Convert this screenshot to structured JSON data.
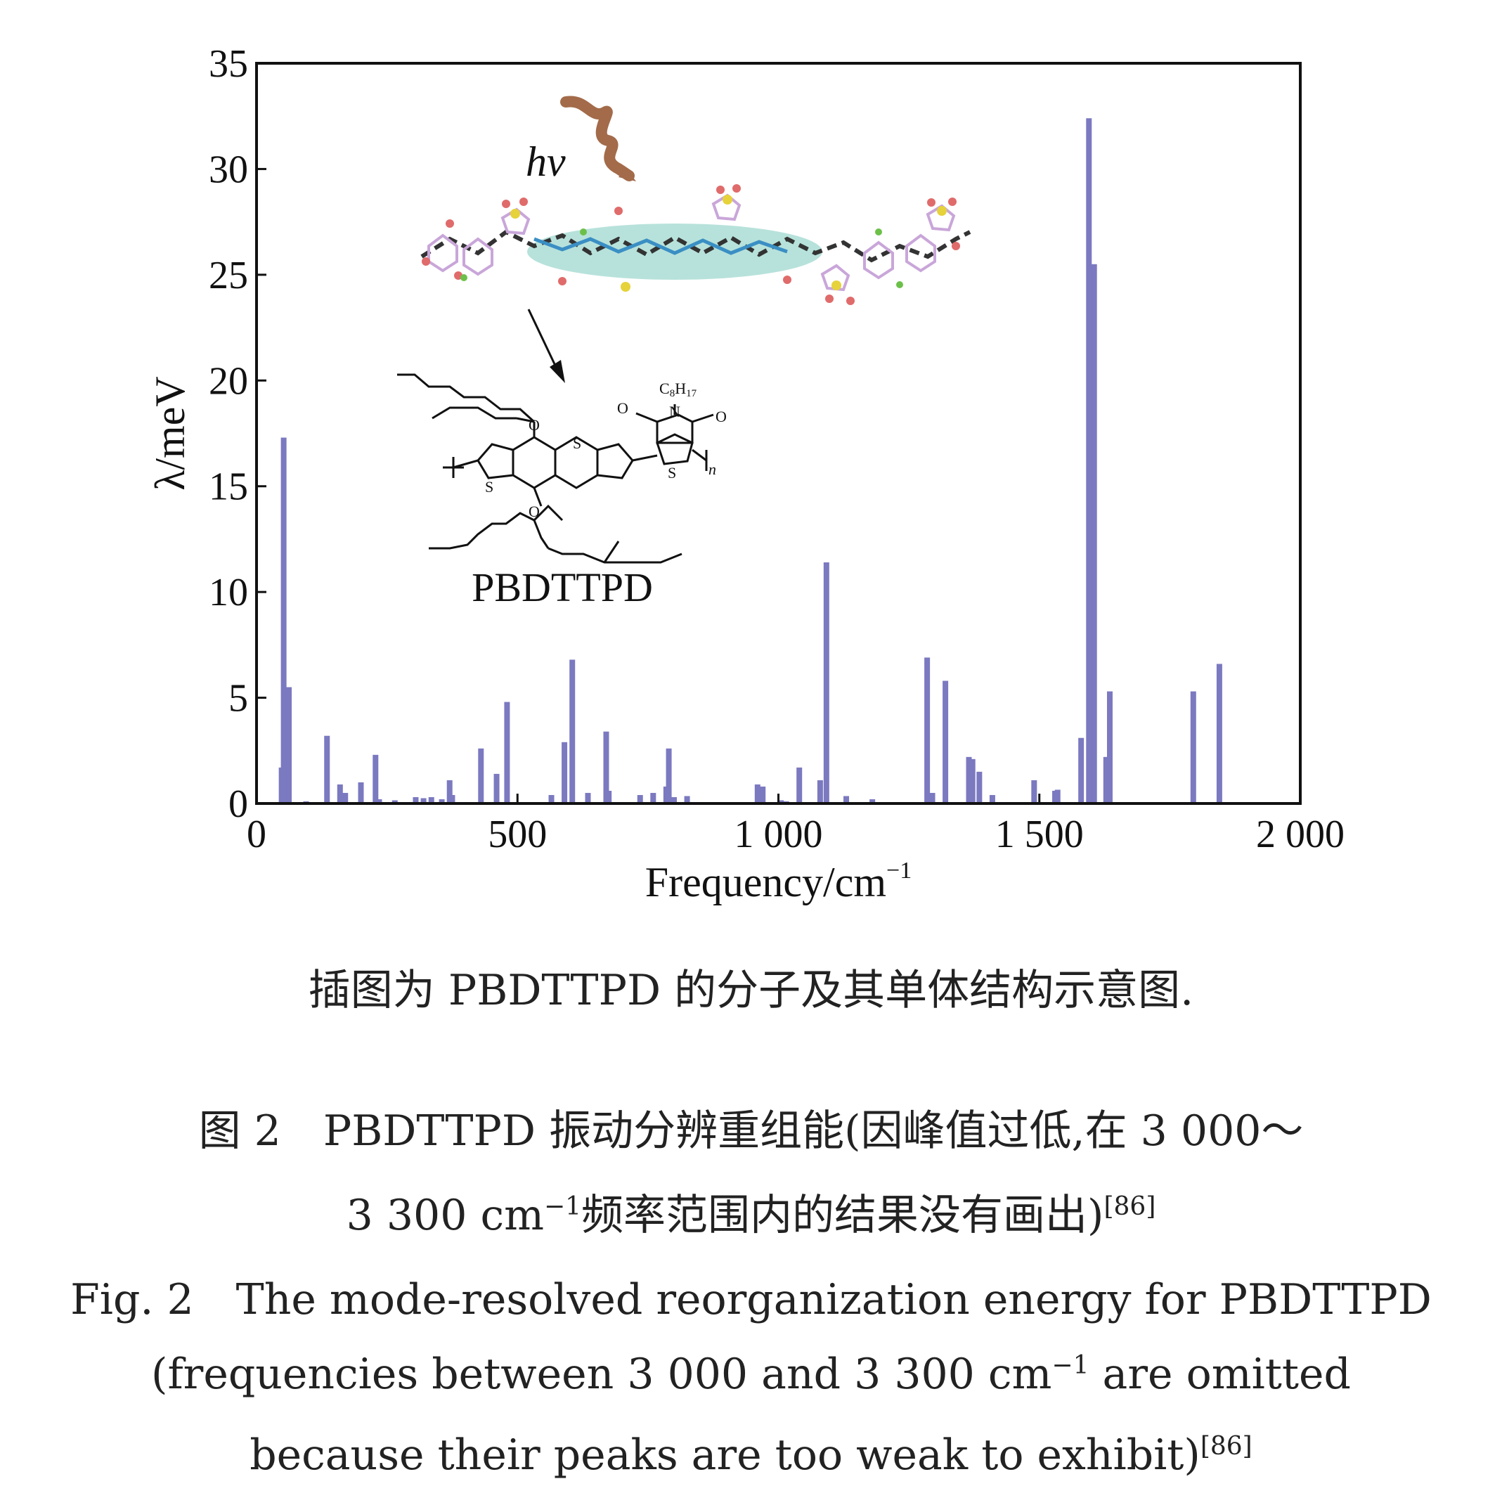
{
  "chart_data": {
    "type": "bar",
    "xlabel": "Frequency/cm",
    "xlabel_sup": "−1",
    "ylabel": "λ/meV",
    "xlim": [
      0,
      2000
    ],
    "ylim": [
      0,
      35
    ],
    "x_ticks": [
      0,
      500,
      1000,
      1500,
      2000
    ],
    "x_tick_labels": [
      "0",
      "500",
      "1 000",
      "1 500",
      "2 000"
    ],
    "y_ticks": [
      0,
      5,
      10,
      15,
      20,
      25,
      30,
      35
    ],
    "y_tick_labels": [
      "0",
      "5",
      "10",
      "15",
      "20",
      "25",
      "30",
      "35"
    ],
    "grid": false,
    "bar_color": "#7b79c0",
    "points": [
      {
        "x": 48,
        "y": 1.7
      },
      {
        "x": 52,
        "y": 17.3
      },
      {
        "x": 62,
        "y": 5.5
      },
      {
        "x": 95,
        "y": 0.1
      },
      {
        "x": 135,
        "y": 3.2
      },
      {
        "x": 160,
        "y": 0.9
      },
      {
        "x": 170,
        "y": 0.5
      },
      {
        "x": 200,
        "y": 1.0
      },
      {
        "x": 228,
        "y": 2.3
      },
      {
        "x": 235,
        "y": 0.2
      },
      {
        "x": 265,
        "y": 0.15
      },
      {
        "x": 305,
        "y": 0.3
      },
      {
        "x": 320,
        "y": 0.25
      },
      {
        "x": 335,
        "y": 0.3
      },
      {
        "x": 355,
        "y": 0.2
      },
      {
        "x": 370,
        "y": 1.1
      },
      {
        "x": 375,
        "y": 0.4
      },
      {
        "x": 430,
        "y": 2.6
      },
      {
        "x": 460,
        "y": 1.4
      },
      {
        "x": 480,
        "y": 4.8
      },
      {
        "x": 565,
        "y": 0.4
      },
      {
        "x": 590,
        "y": 2.9
      },
      {
        "x": 605,
        "y": 6.8
      },
      {
        "x": 635,
        "y": 0.5
      },
      {
        "x": 670,
        "y": 3.4
      },
      {
        "x": 675,
        "y": 0.6
      },
      {
        "x": 735,
        "y": 0.4
      },
      {
        "x": 760,
        "y": 0.5
      },
      {
        "x": 785,
        "y": 0.8
      },
      {
        "x": 790,
        "y": 2.6
      },
      {
        "x": 800,
        "y": 0.3
      },
      {
        "x": 825,
        "y": 0.35
      },
      {
        "x": 960,
        "y": 0.9
      },
      {
        "x": 970,
        "y": 0.8
      },
      {
        "x": 1005,
        "y": 0.15
      },
      {
        "x": 1015,
        "y": 0.1
      },
      {
        "x": 1040,
        "y": 1.7
      },
      {
        "x": 1080,
        "y": 1.1
      },
      {
        "x": 1092,
        "y": 11.4
      },
      {
        "x": 1130,
        "y": 0.35
      },
      {
        "x": 1180,
        "y": 0.2
      },
      {
        "x": 1285,
        "y": 6.9
      },
      {
        "x": 1295,
        "y": 0.5
      },
      {
        "x": 1320,
        "y": 5.8
      },
      {
        "x": 1365,
        "y": 2.2
      },
      {
        "x": 1372,
        "y": 2.1
      },
      {
        "x": 1385,
        "y": 1.5
      },
      {
        "x": 1410,
        "y": 0.4
      },
      {
        "x": 1490,
        "y": 1.1
      },
      {
        "x": 1530,
        "y": 0.6
      },
      {
        "x": 1535,
        "y": 0.65
      },
      {
        "x": 1580,
        "y": 3.1
      },
      {
        "x": 1595,
        "y": 32.4
      },
      {
        "x": 1605,
        "y": 25.5
      },
      {
        "x": 1628,
        "y": 2.2
      },
      {
        "x": 1635,
        "y": 5.3
      },
      {
        "x": 1795,
        "y": 5.3
      },
      {
        "x": 1845,
        "y": 6.6
      }
    ]
  },
  "inset": {
    "hv_label": "hv",
    "polymer_name": "PBDTTPD",
    "substituent": "C",
    "substituent_sub_1": "8",
    "substituent_mid": "H",
    "substituent_sub_2": "17",
    "atom_s": "S",
    "atom_o": "O",
    "atom_n": "N",
    "repeat_index": "n",
    "photon_color": "#a36b4a",
    "highlight_color": "#9fd8cf"
  },
  "captions": {
    "inset_caption": "插图为 PBDTTPD 的分子及其单体结构示意图.",
    "cn_line1": "图 2　PBDTTPD 振动分辨重组能(因峰值过低,在 3 000～",
    "cn_line2_a": "3 300 cm",
    "cn_line2_sup": "−1",
    "cn_line2_b": "频率范围内的结果没有画出)",
    "cn_line2_ref": "[86]",
    "en_line1": "Fig. 2　The mode-resolved reorganization energy for PBDTTPD",
    "en_line2_a": "(frequencies between 3 000 and 3 300 cm",
    "en_line2_sup": "−1",
    "en_line2_b": " are omitted",
    "en_line3": "because their peaks are too weak to exhibit)",
    "en_line3_ref": "[86]"
  }
}
